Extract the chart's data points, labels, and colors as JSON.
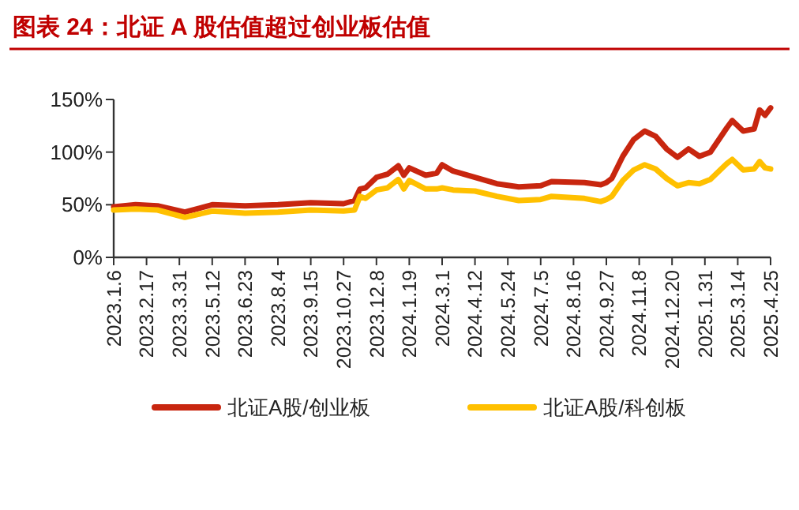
{
  "chart_data": {
    "type": "line",
    "title": "图表 24：北证 A 股估值超过创业板估值",
    "x": [
      "2023-01-06",
      "2023-02-03",
      "2023-03-03",
      "2023-04-07",
      "2023-05-12",
      "2023-06-23",
      "2023-08-04",
      "2023-09-15",
      "2023-10-27",
      "2023-11-10",
      "2023-11-17",
      "2023-11-24",
      "2023-12-08",
      "2023-12-22",
      "2024-01-05",
      "2024-01-12",
      "2024-01-19",
      "2024-02-09",
      "2024-02-23",
      "2024-03-01",
      "2024-03-15",
      "2024-04-12",
      "2024-05-10",
      "2024-06-07",
      "2024-07-05",
      "2024-07-19",
      "2024-08-30",
      "2024-09-20",
      "2024-09-27",
      "2024-10-04",
      "2024-10-18",
      "2024-11-01",
      "2024-11-15",
      "2024-11-29",
      "2024-12-13",
      "2024-12-27",
      "2025-01-10",
      "2025-01-24",
      "2025-02-07",
      "2025-02-28",
      "2025-03-07",
      "2025-03-21",
      "2025-04-04",
      "2025-04-11",
      "2025-04-18",
      "2025-04-25"
    ],
    "series": [
      {
        "name": "北证A股/创业板",
        "color": "#c8260f",
        "values": [
          48,
          50,
          49,
          43,
          50,
          49,
          50,
          52,
          51,
          54,
          65,
          66,
          76,
          79,
          87,
          78,
          85,
          78,
          80,
          88,
          82,
          76,
          70,
          67,
          68,
          72,
          71,
          69,
          71,
          75,
          96,
          112,
          120,
          115,
          103,
          95,
          103,
          96,
          100,
          123,
          130,
          120,
          122,
          140,
          135,
          142
        ]
      },
      {
        "name": "北证A股/科创板",
        "color": "#ffc000",
        "values": [
          45,
          46,
          45,
          38,
          44,
          42,
          43,
          45,
          44,
          45,
          58,
          56,
          64,
          66,
          74,
          65,
          73,
          65,
          65,
          66,
          64,
          63,
          58,
          54,
          55,
          58,
          56,
          53,
          55,
          58,
          73,
          83,
          88,
          84,
          75,
          68,
          71,
          70,
          74,
          89,
          93,
          83,
          84,
          91,
          85,
          84
        ]
      }
    ],
    "xlim": [
      "2023-01-06",
      "2025-04-25"
    ],
    "xticks": [
      {
        "value": "2023-01-06",
        "label": "2023.1.6"
      },
      {
        "value": "2023-02-17",
        "label": "2023.2.17"
      },
      {
        "value": "2023-03-31",
        "label": "2023.3.31"
      },
      {
        "value": "2023-05-12",
        "label": "2023.5.12"
      },
      {
        "value": "2023-06-23",
        "label": "2023.6.23"
      },
      {
        "value": "2023-08-04",
        "label": "2023.8.4"
      },
      {
        "value": "2023-09-15",
        "label": "2023.9.15"
      },
      {
        "value": "2023-10-27",
        "label": "2023.10.27"
      },
      {
        "value": "2023-12-08",
        "label": "2023.12.8"
      },
      {
        "value": "2024-01-19",
        "label": "2024.1.19"
      },
      {
        "value": "2024-03-01",
        "label": "2024.3.1"
      },
      {
        "value": "2024-04-12",
        "label": "2024.4.12"
      },
      {
        "value": "2024-05-24",
        "label": "2024.5.24"
      },
      {
        "value": "2024-07-05",
        "label": "2024.7.5"
      },
      {
        "value": "2024-08-16",
        "label": "2024.8.16"
      },
      {
        "value": "2024-09-27",
        "label": "2024.9.27"
      },
      {
        "value": "2024-11-08",
        "label": "2024.11.8"
      },
      {
        "value": "2024-12-20",
        "label": "2024.12.20"
      },
      {
        "value": "2025-01-31",
        "label": "2025.1.31"
      },
      {
        "value": "2025-03-14",
        "label": "2025.3.14"
      },
      {
        "value": "2025-04-25",
        "label": "2025.4.25"
      }
    ],
    "ylim": [
      0,
      150
    ],
    "yticks": [
      {
        "value": 0,
        "label": "0%"
      },
      {
        "value": 50,
        "label": "50%"
      },
      {
        "value": 100,
        "label": "100%"
      },
      {
        "value": 150,
        "label": "150%"
      }
    ],
    "grid": false,
    "legend": "bottom",
    "marker": "none",
    "line_style": "solid"
  }
}
